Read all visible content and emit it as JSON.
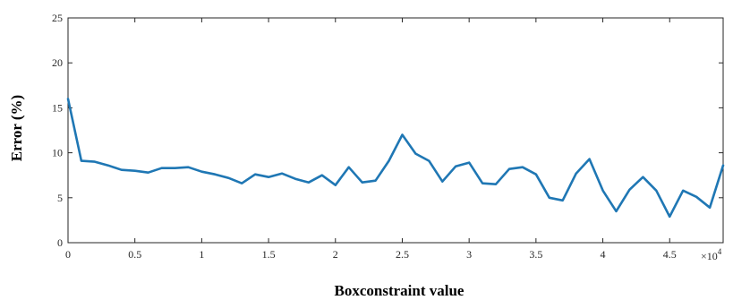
{
  "chart_data": {
    "type": "line",
    "title": "",
    "xlabel": "Boxconstraint value",
    "ylabel": "Error (%)",
    "x_exponent_label": "×10",
    "x_exponent_power": "4",
    "xlim": [
      0,
      4.9
    ],
    "ylim": [
      0,
      25
    ],
    "grid": false,
    "x_ticks": [
      0,
      0.5,
      1,
      1.5,
      2,
      2.5,
      3,
      3.5,
      4,
      4.5
    ],
    "x_tick_labels": [
      "0",
      "0.5",
      "1",
      "1.5",
      "2",
      "2.5",
      "3",
      "3.5",
      "4",
      "4.5"
    ],
    "y_ticks": [
      0,
      5,
      10,
      15,
      20,
      25
    ],
    "y_tick_labels": [
      "0",
      "5",
      "10",
      "15",
      "20",
      "25"
    ],
    "series": [
      {
        "color": "#1f77b4",
        "x": [
          0,
          0.1,
          0.2,
          0.3,
          0.4,
          0.5,
          0.6,
          0.7,
          0.8,
          0.9,
          1.0,
          1.1,
          1.2,
          1.3,
          1.4,
          1.5,
          1.6,
          1.7,
          1.8,
          1.9,
          2.0,
          2.1,
          2.2,
          2.3,
          2.4,
          2.5,
          2.6,
          2.7,
          2.8,
          2.9,
          3.0,
          3.1,
          3.2,
          3.3,
          3.4,
          3.5,
          3.6,
          3.7,
          3.8,
          3.9,
          4.0,
          4.1,
          4.2,
          4.3,
          4.4,
          4.5,
          4.6,
          4.7,
          4.8,
          4.9
        ],
        "y": [
          16.0,
          9.1,
          9.0,
          8.6,
          8.1,
          8.0,
          7.8,
          8.3,
          8.3,
          8.4,
          7.9,
          7.6,
          7.2,
          6.6,
          7.6,
          7.3,
          7.7,
          7.1,
          6.7,
          7.5,
          6.4,
          8.4,
          6.7,
          6.9,
          9.1,
          12.0,
          9.9,
          9.1,
          6.8,
          8.5,
          8.9,
          6.6,
          6.5,
          8.2,
          8.4,
          7.6,
          5.0,
          4.7,
          7.7,
          9.3,
          5.8,
          3.5,
          5.9,
          7.3,
          5.8,
          2.9,
          5.8,
          5.1,
          3.9,
          8.6
        ]
      }
    ]
  }
}
